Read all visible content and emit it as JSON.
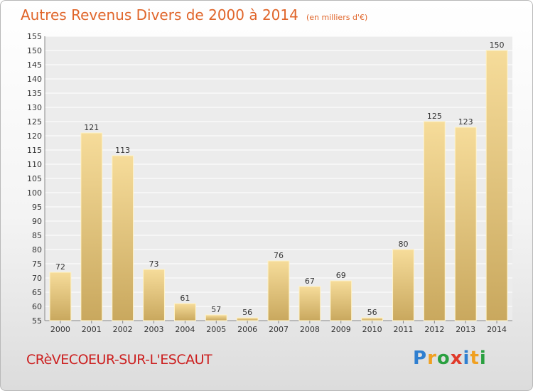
{
  "header": {
    "title": "Autres Revenus Divers de 2000 à 2014",
    "unit": "(en milliers d'€)"
  },
  "footer": {
    "commune": "CRèVECOEUR-SUR-L'ESCAUT",
    "brand_letters": [
      "P",
      "r",
      "o",
      "x",
      "i",
      "t",
      "i"
    ]
  },
  "colors": {
    "bar_light": "#f6dc9a",
    "bar_dark": "#c9a85e",
    "title": "#e0652a",
    "commune": "#cc2020"
  },
  "chart_data": {
    "type": "bar",
    "title": "Autres Revenus Divers de 2000 à 2014",
    "categories": [
      "2000",
      "2001",
      "2002",
      "2003",
      "2004",
      "2005",
      "2006",
      "2007",
      "2008",
      "2009",
      "2010",
      "2011",
      "2012",
      "2013",
      "2014"
    ],
    "values": [
      72,
      121,
      113,
      73,
      61,
      57,
      56,
      76,
      67,
      69,
      56,
      80,
      125,
      123,
      150
    ],
    "ylim": [
      55,
      155
    ],
    "yticks": [
      55,
      60,
      65,
      70,
      75,
      80,
      85,
      90,
      95,
      100,
      105,
      110,
      115,
      120,
      125,
      130,
      135,
      140,
      145,
      150,
      155
    ],
    "grid": true,
    "xlabel": "",
    "ylabel": ""
  }
}
